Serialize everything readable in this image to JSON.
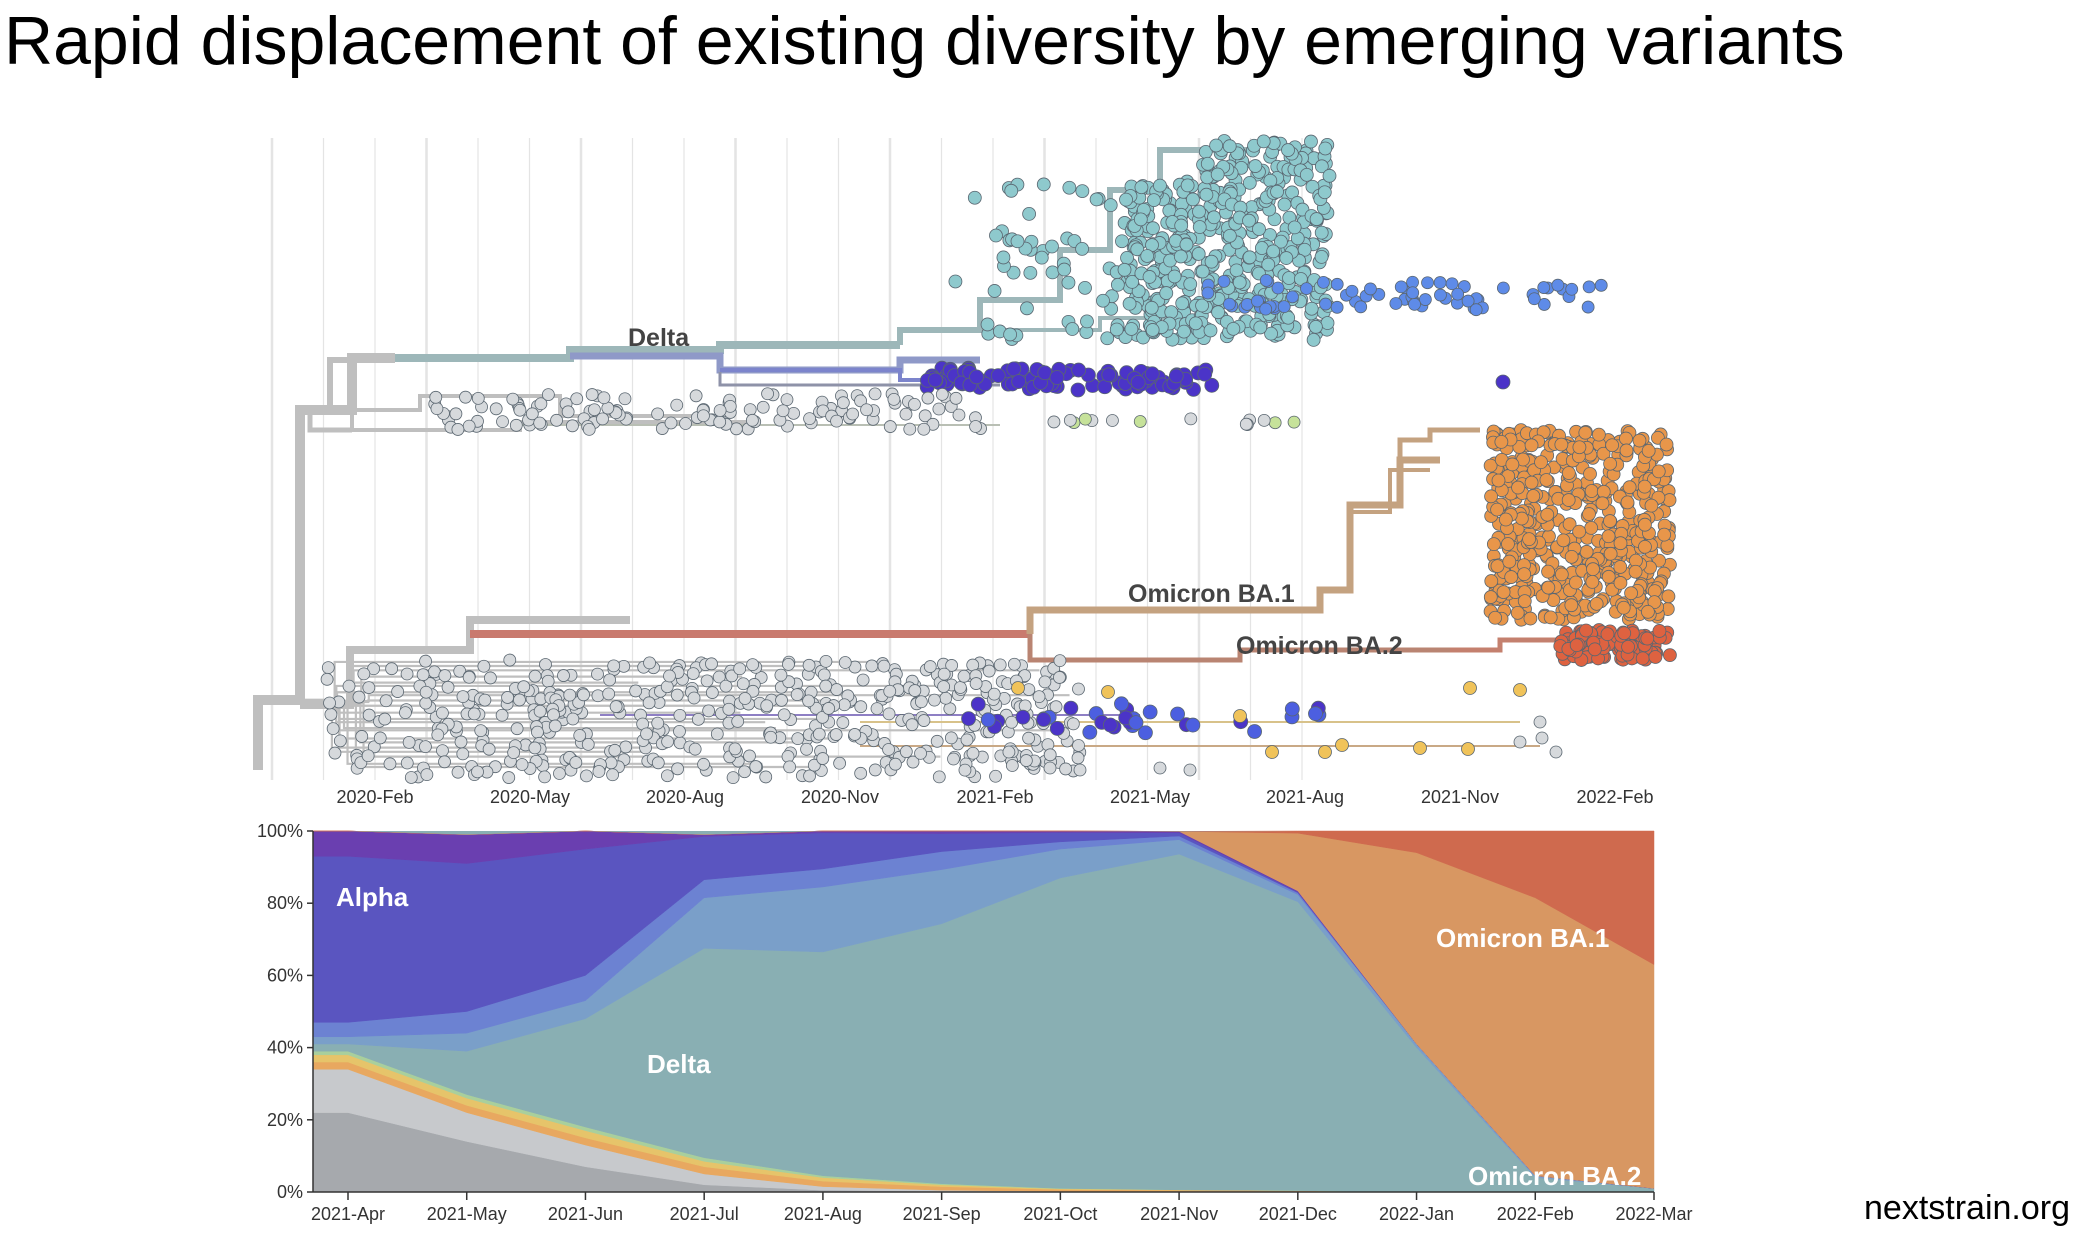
{
  "title": "Rapid displacement of existing diversity by emerging variants",
  "footer": "nextstrain.org",
  "colors": {
    "delta": "#8ec9cd",
    "delta_branch": "#9db7b9",
    "alpha": "#5a55c0",
    "alpha_light": "#6d7fd6",
    "blue": "#4c5fe0",
    "purple": "#4b34c8",
    "omicron_ba1": "#e8964a",
    "omicron_ba2": "#de6240",
    "basal": "#bfbfbf",
    "tip_grey": "#d6d9dc",
    "yellow": "#f0c35a",
    "green": "#c6e29a",
    "delta_area": "#89afb3",
    "ba1_area": "#d89762",
    "ba2_area": "#cf6a4e"
  },
  "chart_data": [
    {
      "type": "scatter",
      "kind": "phylogenetic-tree",
      "x_tick_labels": [
        "2020-Feb",
        "2020-May",
        "2020-Aug",
        "2020-Nov",
        "2021-Feb",
        "2021-May",
        "2021-Aug",
        "2021-Nov",
        "2022-Feb"
      ],
      "clade_labels": [
        "Delta",
        "Omicron BA.1",
        "Omicron BA.2"
      ],
      "grid": true
    },
    {
      "type": "area",
      "kind": "stacked-frequencies",
      "x": [
        "2021-Apr",
        "2021-May",
        "2021-Jun",
        "2021-Jul",
        "2021-Aug",
        "2021-Sep",
        "2021-Oct",
        "2021-Nov",
        "2021-Dec",
        "2022-Jan",
        "2022-Feb",
        "2022-Mar"
      ],
      "y_tick_labels": [
        "0%",
        "20%",
        "40%",
        "60%",
        "80%",
        "100%"
      ],
      "ylim": [
        0,
        100
      ],
      "series": [
        {
          "name": "",
          "color": "#a6a9ad",
          "values": [
            22,
            14,
            7,
            2,
            0.5,
            0.2,
            0.1,
            0.1,
            0.1,
            0,
            0,
            0
          ]
        },
        {
          "name": "",
          "color": "#c7c9cc",
          "values": [
            12,
            8,
            6,
            3,
            1,
            0.3,
            0.1,
            0.1,
            0.1,
            0,
            0,
            0
          ]
        },
        {
          "name": "",
          "color": "#e8a860",
          "values": [
            2,
            2,
            2,
            2,
            1.5,
            1,
            0.5,
            0.3,
            0.2,
            0,
            0,
            0
          ]
        },
        {
          "name": "",
          "color": "#e6c46a",
          "values": [
            2,
            2,
            2,
            1.5,
            1,
            0.5,
            0.2,
            0.1,
            0,
            0,
            0,
            0
          ]
        },
        {
          "name": "",
          "color": "#a9cf9c",
          "values": [
            1,
            1,
            1,
            1,
            0.5,
            0.3,
            0.1,
            0,
            0,
            0,
            0,
            0
          ]
        },
        {
          "name": "Delta",
          "color": "#89afb3",
          "values": [
            2,
            12,
            30,
            58,
            62,
            72,
            86,
            93,
            80,
            40,
            4,
            1
          ]
        },
        {
          "name": "",
          "color": "#7a9fc9",
          "values": [
            2,
            5,
            5,
            14,
            18,
            15,
            8,
            4,
            2,
            1,
            0.5,
            0
          ]
        },
        {
          "name": "",
          "color": "#6c82d2",
          "values": [
            4,
            6,
            7,
            5,
            5,
            5,
            2,
            1,
            0.5,
            0,
            0,
            0
          ]
        },
        {
          "name": "Alpha",
          "color": "#5a55c0",
          "values": [
            46,
            41,
            35,
            12,
            10,
            5,
            2.6,
            0.9,
            0.2,
            0,
            0,
            0
          ]
        },
        {
          "name": "",
          "color": "#6a3fb0",
          "values": [
            7,
            8,
            5,
            0.5,
            0.5,
            0.7,
            0.4,
            0.4,
            0.3,
            0,
            0,
            0
          ]
        },
        {
          "name": "Omicron BA.1",
          "color": "#d89762",
          "values": [
            0,
            0,
            0,
            0,
            0,
            0,
            0,
            0,
            16,
            53,
            77,
            62
          ]
        },
        {
          "name": "Omicron BA.2",
          "color": "#cf6a4e",
          "values": [
            0,
            0,
            0,
            0,
            0,
            0,
            0,
            0,
            0.6,
            6,
            18.5,
            37
          ]
        }
      ],
      "labels": [
        "Alpha",
        "Delta",
        "Omicron BA.1",
        "Omicron BA.2"
      ],
      "grid": false
    }
  ]
}
